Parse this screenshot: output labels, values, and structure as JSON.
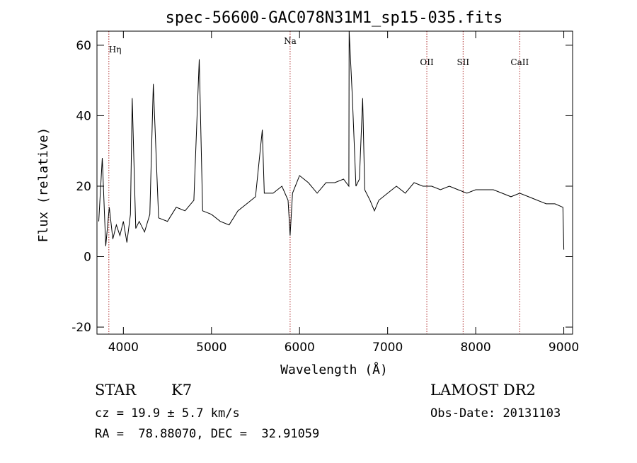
{
  "chart_data": {
    "type": "line",
    "title": "spec-56600-GAC078N31M1_sp15-035.fits",
    "xlabel": "Wavelength (Å)",
    "ylabel": "Flux (relative)",
    "xlim": [
      3700,
      9100
    ],
    "ylim": [
      -22,
      64
    ],
    "xticks": [
      4000,
      5000,
      6000,
      7000,
      8000,
      9000
    ],
    "yticks": [
      -20,
      0,
      20,
      40,
      60
    ],
    "grid": false,
    "line_color": "#000000",
    "marker_color": "#aa2222",
    "lines": [
      {
        "label": "Hη",
        "wavelength": 3835
      },
      {
        "label": "Na",
        "wavelength": 5893
      },
      {
        "label": "OII",
        "wavelength": 7445
      },
      {
        "label": "SII",
        "wavelength": 7857
      },
      {
        "label": "CaII",
        "wavelength": 8500
      }
    ],
    "x": [
      3720,
      3760,
      3800,
      3840,
      3880,
      3920,
      3960,
      4000,
      4040,
      4080,
      4100,
      4140,
      4180,
      4240,
      4300,
      4340,
      4400,
      4500,
      4600,
      4700,
      4800,
      4861,
      4900,
      5000,
      5100,
      5200,
      5300,
      5400,
      5500,
      5577,
      5600,
      5700,
      5800,
      5870,
      5893,
      5920,
      6000,
      6100,
      6200,
      6300,
      6400,
      6500,
      6560,
      6563,
      6600,
      6640,
      6680,
      6717,
      6740,
      6800,
      6850,
      6900,
      7000,
      7100,
      7200,
      7300,
      7400,
      7500,
      7600,
      7700,
      7800,
      7900,
      8000,
      8100,
      8200,
      8300,
      8400,
      8500,
      8600,
      8700,
      8800,
      8900,
      8990,
      9000
    ],
    "y": [
      10,
      28,
      3,
      14,
      5,
      9,
      6,
      10,
      4,
      12,
      45,
      8,
      10,
      7,
      12,
      49,
      11,
      10,
      14,
      13,
      16,
      56,
      13,
      12,
      10,
      9,
      13,
      15,
      17,
      36,
      18,
      18,
      20,
      16,
      6,
      18,
      23,
      21,
      18,
      21,
      21,
      22,
      20,
      64,
      45,
      20,
      22,
      45,
      19,
      16,
      13,
      16,
      18,
      20,
      18,
      21,
      20,
      20,
      19,
      20,
      19,
      18,
      19,
      19,
      19,
      18,
      17,
      18,
      17,
      16,
      15,
      15,
      14,
      2
    ]
  },
  "info": {
    "object_class": "STAR",
    "subclass": "K7",
    "redshift": "cz = 19.9 ± 5.7 km/s",
    "coords": "RA =  78.88070, DEC =  32.91059",
    "survey": "LAMOST DR2",
    "obs_date": "Obs-Date: 20131103"
  }
}
